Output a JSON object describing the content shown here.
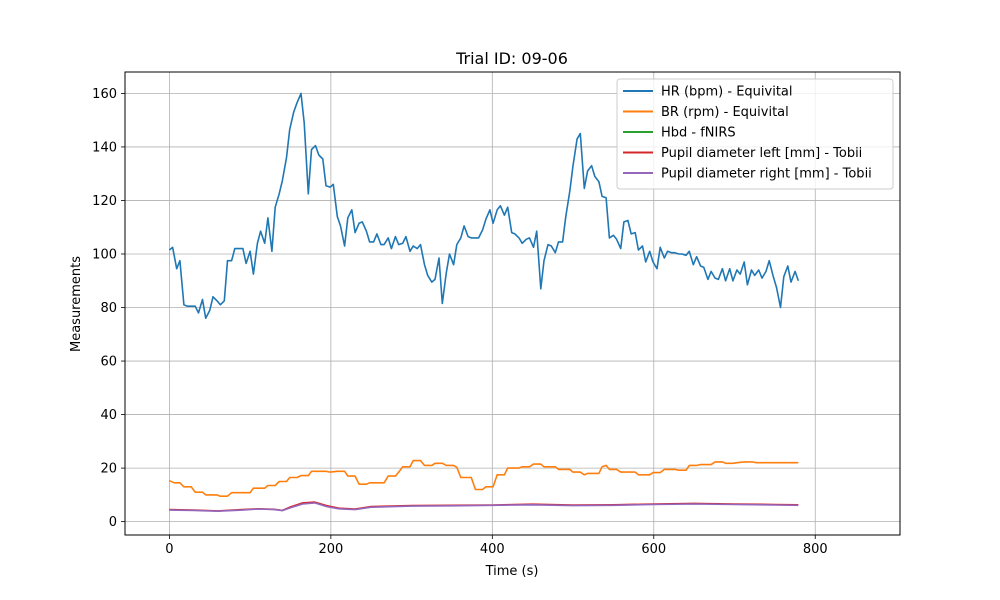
{
  "chart_data": {
    "type": "line",
    "title": "Trial ID: 09-06",
    "xlabel": "Time (s)",
    "ylabel": "Measurements",
    "xlim": [
      -55,
      905
    ],
    "ylim": [
      -5,
      168
    ],
    "xticks": [
      0,
      200,
      400,
      600,
      800
    ],
    "yticks": [
      0,
      20,
      40,
      60,
      80,
      100,
      120,
      140,
      160
    ],
    "grid": true,
    "legend_position": "top-right",
    "series": [
      {
        "name": "HR (bpm) - Equivital",
        "color": "#1f77b4",
        "points": [
          [
            0,
            101.5
          ],
          [
            4,
            102.5
          ],
          [
            9,
            94.5
          ],
          [
            13,
            97.5
          ],
          [
            18,
            81
          ],
          [
            22,
            80.5
          ],
          [
            27,
            80.5
          ],
          [
            32,
            80.5
          ],
          [
            36,
            78
          ],
          [
            41,
            83
          ],
          [
            45,
            76
          ],
          [
            50,
            79
          ],
          [
            54,
            84
          ],
          [
            59,
            82.5
          ],
          [
            63,
            81
          ],
          [
            68,
            82.5
          ],
          [
            72,
            97.5
          ],
          [
            77,
            97.5
          ],
          [
            81,
            102
          ],
          [
            86,
            102
          ],
          [
            91,
            102
          ],
          [
            95,
            96.5
          ],
          [
            100,
            101
          ],
          [
            104,
            92.5
          ],
          [
            109,
            104
          ],
          [
            113,
            108.5
          ],
          [
            118,
            104
          ],
          [
            122,
            113.5
          ],
          [
            127,
            101
          ],
          [
            131,
            117.5
          ],
          [
            136,
            122.5
          ],
          [
            140,
            127.5
          ],
          [
            145,
            136
          ],
          [
            149,
            146.5
          ],
          [
            154,
            153
          ],
          [
            158,
            156.5
          ],
          [
            163,
            160
          ],
          [
            167,
            149
          ],
          [
            172,
            122.5
          ],
          [
            176,
            139
          ],
          [
            181,
            140.5
          ],
          [
            185,
            137
          ],
          [
            190,
            135.5
          ],
          [
            194,
            125.5
          ],
          [
            199,
            125
          ],
          [
            203,
            126
          ],
          [
            208,
            114
          ],
          [
            212,
            110.5
          ],
          [
            217,
            103
          ],
          [
            221,
            113.5
          ],
          [
            226,
            116.5
          ],
          [
            230,
            108
          ],
          [
            235,
            111.5
          ],
          [
            239,
            112
          ],
          [
            244,
            108.5
          ],
          [
            248,
            104.5
          ],
          [
            253,
            104.5
          ],
          [
            257,
            107.5
          ],
          [
            262,
            103.5
          ],
          [
            266,
            103.5
          ],
          [
            271,
            106
          ],
          [
            275,
            102
          ],
          [
            280,
            106.5
          ],
          [
            284,
            103.5
          ],
          [
            289,
            104
          ],
          [
            293,
            106.5
          ],
          [
            298,
            101
          ],
          [
            302,
            103
          ],
          [
            307,
            102
          ],
          [
            311,
            103.5
          ],
          [
            316,
            96
          ],
          [
            320,
            92
          ],
          [
            325,
            89.5
          ],
          [
            329,
            90.5
          ],
          [
            334,
            98.5
          ],
          [
            338,
            81.5
          ],
          [
            343,
            93
          ],
          [
            347,
            100
          ],
          [
            352,
            96
          ],
          [
            356,
            103.5
          ],
          [
            361,
            106
          ],
          [
            365,
            110.5
          ],
          [
            370,
            106.5
          ],
          [
            374,
            106
          ],
          [
            379,
            106
          ],
          [
            383,
            106
          ],
          [
            388,
            109
          ],
          [
            392,
            113
          ],
          [
            397,
            116.5
          ],
          [
            401,
            111.5
          ],
          [
            406,
            116.5
          ],
          [
            410,
            118
          ],
          [
            415,
            114.5
          ],
          [
            419,
            117.5
          ],
          [
            424,
            108
          ],
          [
            428,
            107.5
          ],
          [
            433,
            106
          ],
          [
            437,
            104
          ],
          [
            442,
            105.5
          ],
          [
            446,
            106
          ],
          [
            451,
            102.5
          ],
          [
            455,
            108.5
          ],
          [
            460,
            87
          ],
          [
            464,
            97.5
          ],
          [
            469,
            103.5
          ],
          [
            473,
            103
          ],
          [
            478,
            100.5
          ],
          [
            482,
            104.5
          ],
          [
            487,
            104.5
          ],
          [
            491,
            114
          ],
          [
            496,
            123.5
          ],
          [
            500,
            133
          ],
          [
            505,
            143
          ],
          [
            509,
            145
          ],
          [
            514,
            124.5
          ],
          [
            518,
            131
          ],
          [
            523,
            133
          ],
          [
            527,
            129
          ],
          [
            532,
            127
          ],
          [
            536,
            121.5
          ],
          [
            541,
            121
          ],
          [
            545,
            106
          ],
          [
            550,
            107
          ],
          [
            554,
            105.5
          ],
          [
            559,
            102
          ],
          [
            563,
            112
          ],
          [
            568,
            112.5
          ],
          [
            572,
            107.5
          ],
          [
            577,
            108
          ],
          [
            581,
            101.5
          ],
          [
            586,
            103
          ],
          [
            590,
            97
          ],
          [
            595,
            101
          ],
          [
            599,
            97
          ],
          [
            604,
            94.5
          ],
          [
            608,
            102.5
          ],
          [
            613,
            98.5
          ],
          [
            617,
            101
          ],
          [
            622,
            100.5
          ],
          [
            626,
            100.5
          ],
          [
            631,
            100
          ],
          [
            635,
            100
          ],
          [
            640,
            99.5
          ],
          [
            644,
            101
          ],
          [
            649,
            96
          ],
          [
            653,
            99
          ],
          [
            658,
            95.5
          ],
          [
            662,
            95
          ],
          [
            667,
            90.5
          ],
          [
            671,
            93.5
          ],
          [
            676,
            91
          ],
          [
            680,
            90.5
          ],
          [
            685,
            94.5
          ],
          [
            689,
            90
          ],
          [
            694,
            94.5
          ],
          [
            698,
            90
          ],
          [
            703,
            94
          ],
          [
            707,
            92.5
          ],
          [
            712,
            97
          ],
          [
            716,
            88.5
          ],
          [
            721,
            94
          ],
          [
            725,
            92
          ],
          [
            730,
            94
          ],
          [
            734,
            91
          ],
          [
            739,
            93.5
          ],
          [
            743,
            97.5
          ],
          [
            748,
            91.5
          ],
          [
            752,
            87.5
          ],
          [
            757,
            80
          ],
          [
            761,
            91.5
          ],
          [
            766,
            95.5
          ],
          [
            770,
            89.5
          ],
          [
            775,
            93.5
          ],
          [
            779,
            90
          ]
        ]
      },
      {
        "name": "BR (rpm) - Equivital",
        "color": "#ff7f0e",
        "points": [
          [
            0,
            15.3
          ],
          [
            6,
            14.5
          ],
          [
            13,
            14.5
          ],
          [
            18,
            13
          ],
          [
            27,
            13
          ],
          [
            32,
            11
          ],
          [
            41,
            11
          ],
          [
            45,
            10
          ],
          [
            59,
            10
          ],
          [
            63,
            9.5
          ],
          [
            72,
            9.5
          ],
          [
            77,
            10.8
          ],
          [
            100,
            10.8
          ],
          [
            104,
            12.5
          ],
          [
            118,
            12.5
          ],
          [
            122,
            13.5
          ],
          [
            131,
            13.5
          ],
          [
            136,
            15
          ],
          [
            145,
            15
          ],
          [
            149,
            16.5
          ],
          [
            158,
            16.5
          ],
          [
            163,
            17.2
          ],
          [
            172,
            17.2
          ],
          [
            176,
            18.8
          ],
          [
            194,
            18.8
          ],
          [
            199,
            18.5
          ],
          [
            208,
            18.8
          ],
          [
            217,
            18.8
          ],
          [
            221,
            17
          ],
          [
            230,
            17
          ],
          [
            235,
            14
          ],
          [
            244,
            14
          ],
          [
            248,
            14.5
          ],
          [
            266,
            14.5
          ],
          [
            271,
            17
          ],
          [
            280,
            17
          ],
          [
            284,
            18.5
          ],
          [
            289,
            20.5
          ],
          [
            298,
            20.5
          ],
          [
            302,
            22.8
          ],
          [
            311,
            22.8
          ],
          [
            316,
            21
          ],
          [
            325,
            21
          ],
          [
            329,
            21.8
          ],
          [
            338,
            21.8
          ],
          [
            343,
            21
          ],
          [
            352,
            21
          ],
          [
            356,
            20.3
          ],
          [
            361,
            16.5
          ],
          [
            374,
            16.5
          ],
          [
            379,
            12
          ],
          [
            388,
            12
          ],
          [
            392,
            13
          ],
          [
            401,
            13
          ],
          [
            406,
            17.5
          ],
          [
            415,
            17.5
          ],
          [
            419,
            20
          ],
          [
            433,
            20
          ],
          [
            437,
            20.5
          ],
          [
            446,
            20.5
          ],
          [
            451,
            21.5
          ],
          [
            460,
            21.5
          ],
          [
            464,
            20.5
          ],
          [
            478,
            20.5
          ],
          [
            482,
            19.5
          ],
          [
            496,
            19.5
          ],
          [
            500,
            18.5
          ],
          [
            509,
            18.5
          ],
          [
            514,
            17.5
          ],
          [
            518,
            18
          ],
          [
            532,
            18
          ],
          [
            536,
            20.5
          ],
          [
            541,
            21
          ],
          [
            545,
            19.5
          ],
          [
            554,
            19.5
          ],
          [
            559,
            18.5
          ],
          [
            577,
            18.5
          ],
          [
            581,
            17.5
          ],
          [
            595,
            17.5
          ],
          [
            599,
            18.3
          ],
          [
            608,
            18.3
          ],
          [
            613,
            19.5
          ],
          [
            626,
            19.5
          ],
          [
            631,
            19.2
          ],
          [
            640,
            19.2
          ],
          [
            644,
            21
          ],
          [
            653,
            21
          ],
          [
            658,
            21.3
          ],
          [
            671,
            21.3
          ],
          [
            676,
            22.3
          ],
          [
            685,
            22.3
          ],
          [
            689,
            21.8
          ],
          [
            698,
            21.8
          ],
          [
            703,
            22
          ],
          [
            712,
            22.3
          ],
          [
            722,
            22.3
          ],
          [
            727,
            22
          ],
          [
            779,
            22
          ]
        ]
      },
      {
        "name": "Hbd - fNIRS",
        "color": "#2ca02c",
        "points": []
      },
      {
        "name": "Pupil diameter left [mm] - Tobii",
        "color": "#d62728",
        "points": [
          [
            0,
            4.5
          ],
          [
            30,
            4.3
          ],
          [
            60,
            4
          ],
          [
            90,
            4.5
          ],
          [
            110,
            4.8
          ],
          [
            130,
            4.6
          ],
          [
            140,
            4.2
          ],
          [
            150,
            5.5
          ],
          [
            165,
            7
          ],
          [
            180,
            7.3
          ],
          [
            195,
            6
          ],
          [
            210,
            5
          ],
          [
            230,
            4.7
          ],
          [
            250,
            5.6
          ],
          [
            300,
            6
          ],
          [
            350,
            6.1
          ],
          [
            400,
            6.2
          ],
          [
            450,
            6.5
          ],
          [
            500,
            6.2
          ],
          [
            550,
            6.3
          ],
          [
            600,
            6.6
          ],
          [
            650,
            6.8
          ],
          [
            700,
            6.6
          ],
          [
            750,
            6.4
          ],
          [
            779,
            6.3
          ]
        ]
      },
      {
        "name": "Pupil diameter right [mm] - Tobii",
        "color": "#9467bd",
        "points": [
          [
            0,
            4.3
          ],
          [
            30,
            4.2
          ],
          [
            60,
            3.9
          ],
          [
            90,
            4.3
          ],
          [
            110,
            4.7
          ],
          [
            130,
            4.5
          ],
          [
            140,
            4.1
          ],
          [
            150,
            5.2
          ],
          [
            165,
            6.6
          ],
          [
            180,
            7
          ],
          [
            195,
            5.6
          ],
          [
            210,
            4.8
          ],
          [
            230,
            4.5
          ],
          [
            250,
            5.4
          ],
          [
            300,
            5.8
          ],
          [
            350,
            5.9
          ],
          [
            400,
            6.1
          ],
          [
            450,
            6.3
          ],
          [
            500,
            6
          ],
          [
            550,
            6.1
          ],
          [
            600,
            6.4
          ],
          [
            650,
            6.6
          ],
          [
            700,
            6.4
          ],
          [
            750,
            6.2
          ],
          [
            779,
            6.1
          ]
        ]
      }
    ]
  }
}
